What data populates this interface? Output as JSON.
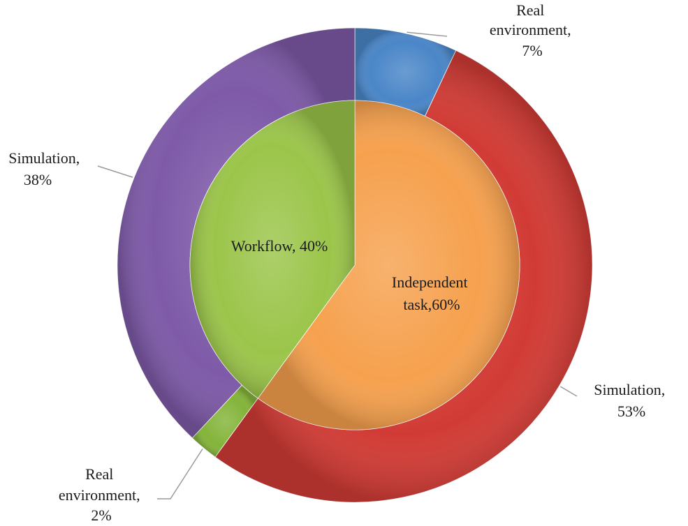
{
  "chart_data": {
    "type": "pie",
    "variant": "nested-donut",
    "title": "",
    "colors": {
      "simulation_outer_right": "#d23b35",
      "real_env_outer_right": "#4a86c8",
      "simulation_outer_left": "#7e5aa8",
      "real_env_outer_left": "#84b43a",
      "independent_task": "#f6a14e",
      "workflow": "#9bc54a"
    },
    "inner_ring": [
      {
        "id": "independent",
        "label_line1": "Independent",
        "label_line2": "task,60%",
        "value": 60,
        "color_key": "independent_task"
      },
      {
        "id": "workflow",
        "label_line1": "Workflow, 40%",
        "label_line2": "",
        "value": 40,
        "color_key": "workflow"
      }
    ],
    "outer_ring": [
      {
        "id": "ind-real",
        "parent": "independent",
        "label_line1": "Real",
        "label_line2": "environment,",
        "label_line3": "7%",
        "value": 7,
        "color_key": "real_env_outer_right"
      },
      {
        "id": "ind-sim",
        "parent": "independent",
        "label_line1": "Simulation,",
        "label_line2": "53%",
        "label_line3": "",
        "value": 53,
        "color_key": "simulation_outer_right"
      },
      {
        "id": "wf-real",
        "parent": "workflow",
        "label_line1": "Real",
        "label_line2": "environment,",
        "label_line3": "2%",
        "value": 2,
        "color_key": "real_env_outer_left"
      },
      {
        "id": "wf-sim",
        "parent": "workflow",
        "label_line1": "Simulation,",
        "label_line2": "38%",
        "label_line3": "",
        "value": 38,
        "color_key": "simulation_outer_left"
      }
    ]
  }
}
